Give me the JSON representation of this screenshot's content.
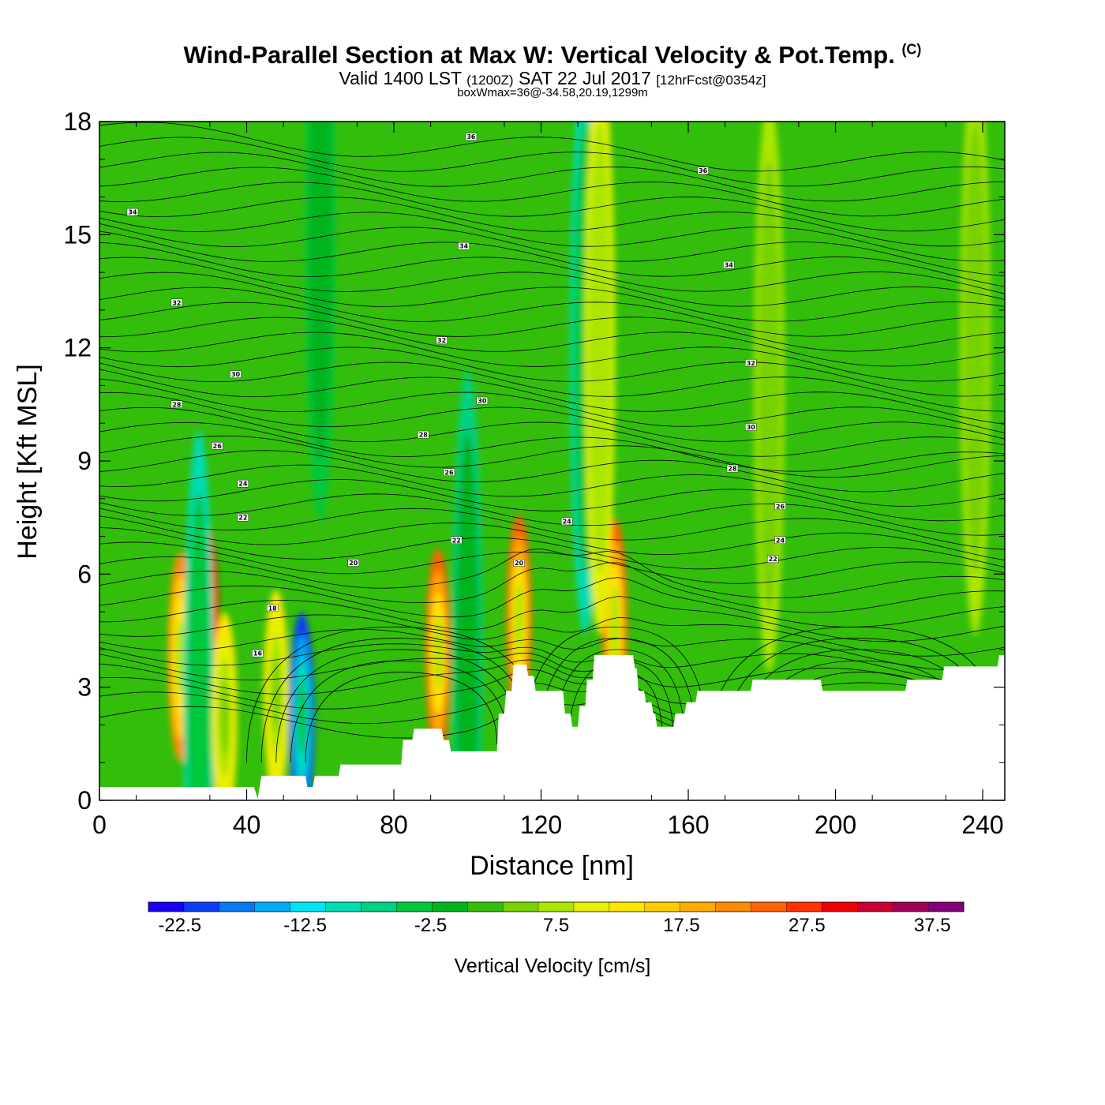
{
  "chart_data": {
    "type": "heatmap",
    "title": "Wind-Parallel Section at Max W: Vertical Velocity & Pot.Temp.",
    "copyright": "(C)",
    "subtitle": {
      "prefix": "Valid 1400 LST",
      "utc": "(1200Z)",
      "date": "SAT 22 Jul 2017",
      "forecast": "[12hrFcst@0354z]"
    },
    "box_info": "boxWmax=36@-34.58,20.19,1299m",
    "xlabel": "Distance [nm]",
    "ylabel": "Height [Kft MSL]",
    "xlim": [
      0,
      246
    ],
    "ylim": [
      0,
      18
    ],
    "x_ticks": [
      "0",
      "40",
      "80",
      "120",
      "160",
      "200",
      "240"
    ],
    "y_ticks": [
      "0",
      "3",
      "6",
      "9",
      "12",
      "15",
      "18"
    ],
    "colorbar": {
      "label": "Vertical Velocity [cm/s]",
      "tick_labels": [
        "-22.5",
        "-12.5",
        "-2.5",
        "7.5",
        "17.5",
        "27.5",
        "37.5"
      ],
      "range": [
        -25,
        40
      ],
      "colors": [
        "#1a00f0",
        "#0a3cf5",
        "#0a78f0",
        "#00aaf5",
        "#00e6f5",
        "#00dcb4",
        "#00d282",
        "#00c83c",
        "#00b41e",
        "#32be0a",
        "#78d200",
        "#aae600",
        "#e6f000",
        "#ffe600",
        "#ffcc00",
        "#ffaa00",
        "#ff8c00",
        "#ff6400",
        "#ff3200",
        "#f00000",
        "#c80032",
        "#a0005a",
        "#820078"
      ]
    },
    "background_w": 2.5,
    "vertical_velocity_features": [
      {
        "x": 22,
        "z": 3.8,
        "w": 22
      },
      {
        "x": 29,
        "z": 4.6,
        "w": 30
      },
      {
        "x": 27,
        "z": 2.2,
        "w": -10
      },
      {
        "x": 34,
        "z": 2.2,
        "w": 14
      },
      {
        "x": 48,
        "z": 2.8,
        "w": 14
      },
      {
        "x": 55,
        "z": 2.2,
        "w": -22
      },
      {
        "x": 92,
        "z": 3.9,
        "w": 24
      },
      {
        "x": 114,
        "z": 4.8,
        "w": 24
      },
      {
        "x": 140,
        "z": 4.7,
        "w": 24
      },
      {
        "x": 132,
        "z": 12.0,
        "w": -10
      },
      {
        "x": 136,
        "z": 12.0,
        "w": 10
      },
      {
        "x": 182,
        "z": 11.0,
        "w": 7
      },
      {
        "x": 238,
        "z": 12.0,
        "w": 8
      },
      {
        "x": 60,
        "z": 15.0,
        "w": -5
      },
      {
        "x": 100,
        "z": 3.8,
        "w": -6
      }
    ],
    "theta_contours": [
      {
        "label": "16",
        "x": 43,
        "z": 3.9
      },
      {
        "label": "18",
        "x": 47,
        "z": 5.1
      },
      {
        "label": "20",
        "x": 69,
        "z": 6.3
      },
      {
        "label": "20",
        "x": 114,
        "z": 6.3
      },
      {
        "label": "22",
        "x": 39,
        "z": 7.5
      },
      {
        "label": "22",
        "x": 97,
        "z": 6.9
      },
      {
        "label": "22",
        "x": 183,
        "z": 6.4
      },
      {
        "label": "24",
        "x": 39,
        "z": 8.4
      },
      {
        "label": "24",
        "x": 127,
        "z": 7.4
      },
      {
        "label": "24",
        "x": 185,
        "z": 6.9
      },
      {
        "label": "26",
        "x": 32,
        "z": 9.4
      },
      {
        "label": "26",
        "x": 95,
        "z": 8.7
      },
      {
        "label": "26",
        "x": 185,
        "z": 7.8
      },
      {
        "label": "28",
        "x": 21,
        "z": 10.5
      },
      {
        "label": "28",
        "x": 88,
        "z": 9.7
      },
      {
        "label": "28",
        "x": 172,
        "z": 8.8
      },
      {
        "label": "30",
        "x": 37,
        "z": 11.3
      },
      {
        "label": "30",
        "x": 104,
        "z": 10.6
      },
      {
        "label": "30",
        "x": 177,
        "z": 9.9
      },
      {
        "label": "32",
        "x": 21,
        "z": 13.2
      },
      {
        "label": "32",
        "x": 93,
        "z": 12.2
      },
      {
        "label": "32",
        "x": 177,
        "z": 11.6
      },
      {
        "label": "34",
        "x": 9,
        "z": 15.6
      },
      {
        "label": "34",
        "x": 99,
        "z": 14.7
      },
      {
        "label": "34",
        "x": 171,
        "z": 14.2
      },
      {
        "label": "36",
        "x": 101,
        "z": 17.6
      },
      {
        "label": "36",
        "x": 164,
        "z": 16.7
      }
    ],
    "terrain": [
      [
        0,
        0.35
      ],
      [
        42,
        0.35
      ],
      [
        43,
        0.05
      ],
      [
        44,
        0.65
      ],
      [
        56,
        0.65
      ],
      [
        56.5,
        0.35
      ],
      [
        58,
        0.35
      ],
      [
        58.5,
        0.65
      ],
      [
        65,
        0.65
      ],
      [
        65.5,
        0.95
      ],
      [
        82,
        0.95
      ],
      [
        82.5,
        1.6
      ],
      [
        85,
        1.6
      ],
      [
        85.5,
        1.9
      ],
      [
        93,
        1.9
      ],
      [
        93.5,
        1.6
      ],
      [
        95,
        1.6
      ],
      [
        95.5,
        1.3
      ],
      [
        108,
        1.3
      ],
      [
        108.5,
        2.3
      ],
      [
        110,
        2.3
      ],
      [
        110.5,
        2.9
      ],
      [
        112,
        2.9
      ],
      [
        112.5,
        3.6
      ],
      [
        116,
        3.6
      ],
      [
        116.5,
        3.3
      ],
      [
        118,
        3.3
      ],
      [
        118.5,
        2.9
      ],
      [
        126,
        2.9
      ],
      [
        126.5,
        2.3
      ],
      [
        128,
        2.3
      ],
      [
        128.5,
        1.95
      ],
      [
        130,
        1.95
      ],
      [
        130.5,
        2.5
      ],
      [
        132,
        2.5
      ],
      [
        132.5,
        3.2
      ],
      [
        134,
        3.2
      ],
      [
        134.5,
        3.85
      ],
      [
        145,
        3.85
      ],
      [
        145.5,
        3.5
      ],
      [
        146,
        3.5
      ],
      [
        146.5,
        2.9
      ],
      [
        148,
        2.9
      ],
      [
        148.5,
        2.6
      ],
      [
        150,
        2.6
      ],
      [
        150.5,
        2.3
      ],
      [
        151,
        2.3
      ],
      [
        151.5,
        1.95
      ],
      [
        156,
        1.95
      ],
      [
        156.5,
        2.3
      ],
      [
        159,
        2.3
      ],
      [
        159.5,
        2.6
      ],
      [
        162,
        2.6
      ],
      [
        162.5,
        2.9
      ],
      [
        177,
        2.9
      ],
      [
        177.5,
        3.2
      ],
      [
        196,
        3.2
      ],
      [
        196.5,
        2.9
      ],
      [
        219,
        2.9
      ],
      [
        219.5,
        3.2
      ],
      [
        229,
        3.2
      ],
      [
        229.5,
        3.55
      ],
      [
        244,
        3.55
      ],
      [
        244.5,
        3.85
      ],
      [
        246,
        3.85
      ]
    ]
  }
}
